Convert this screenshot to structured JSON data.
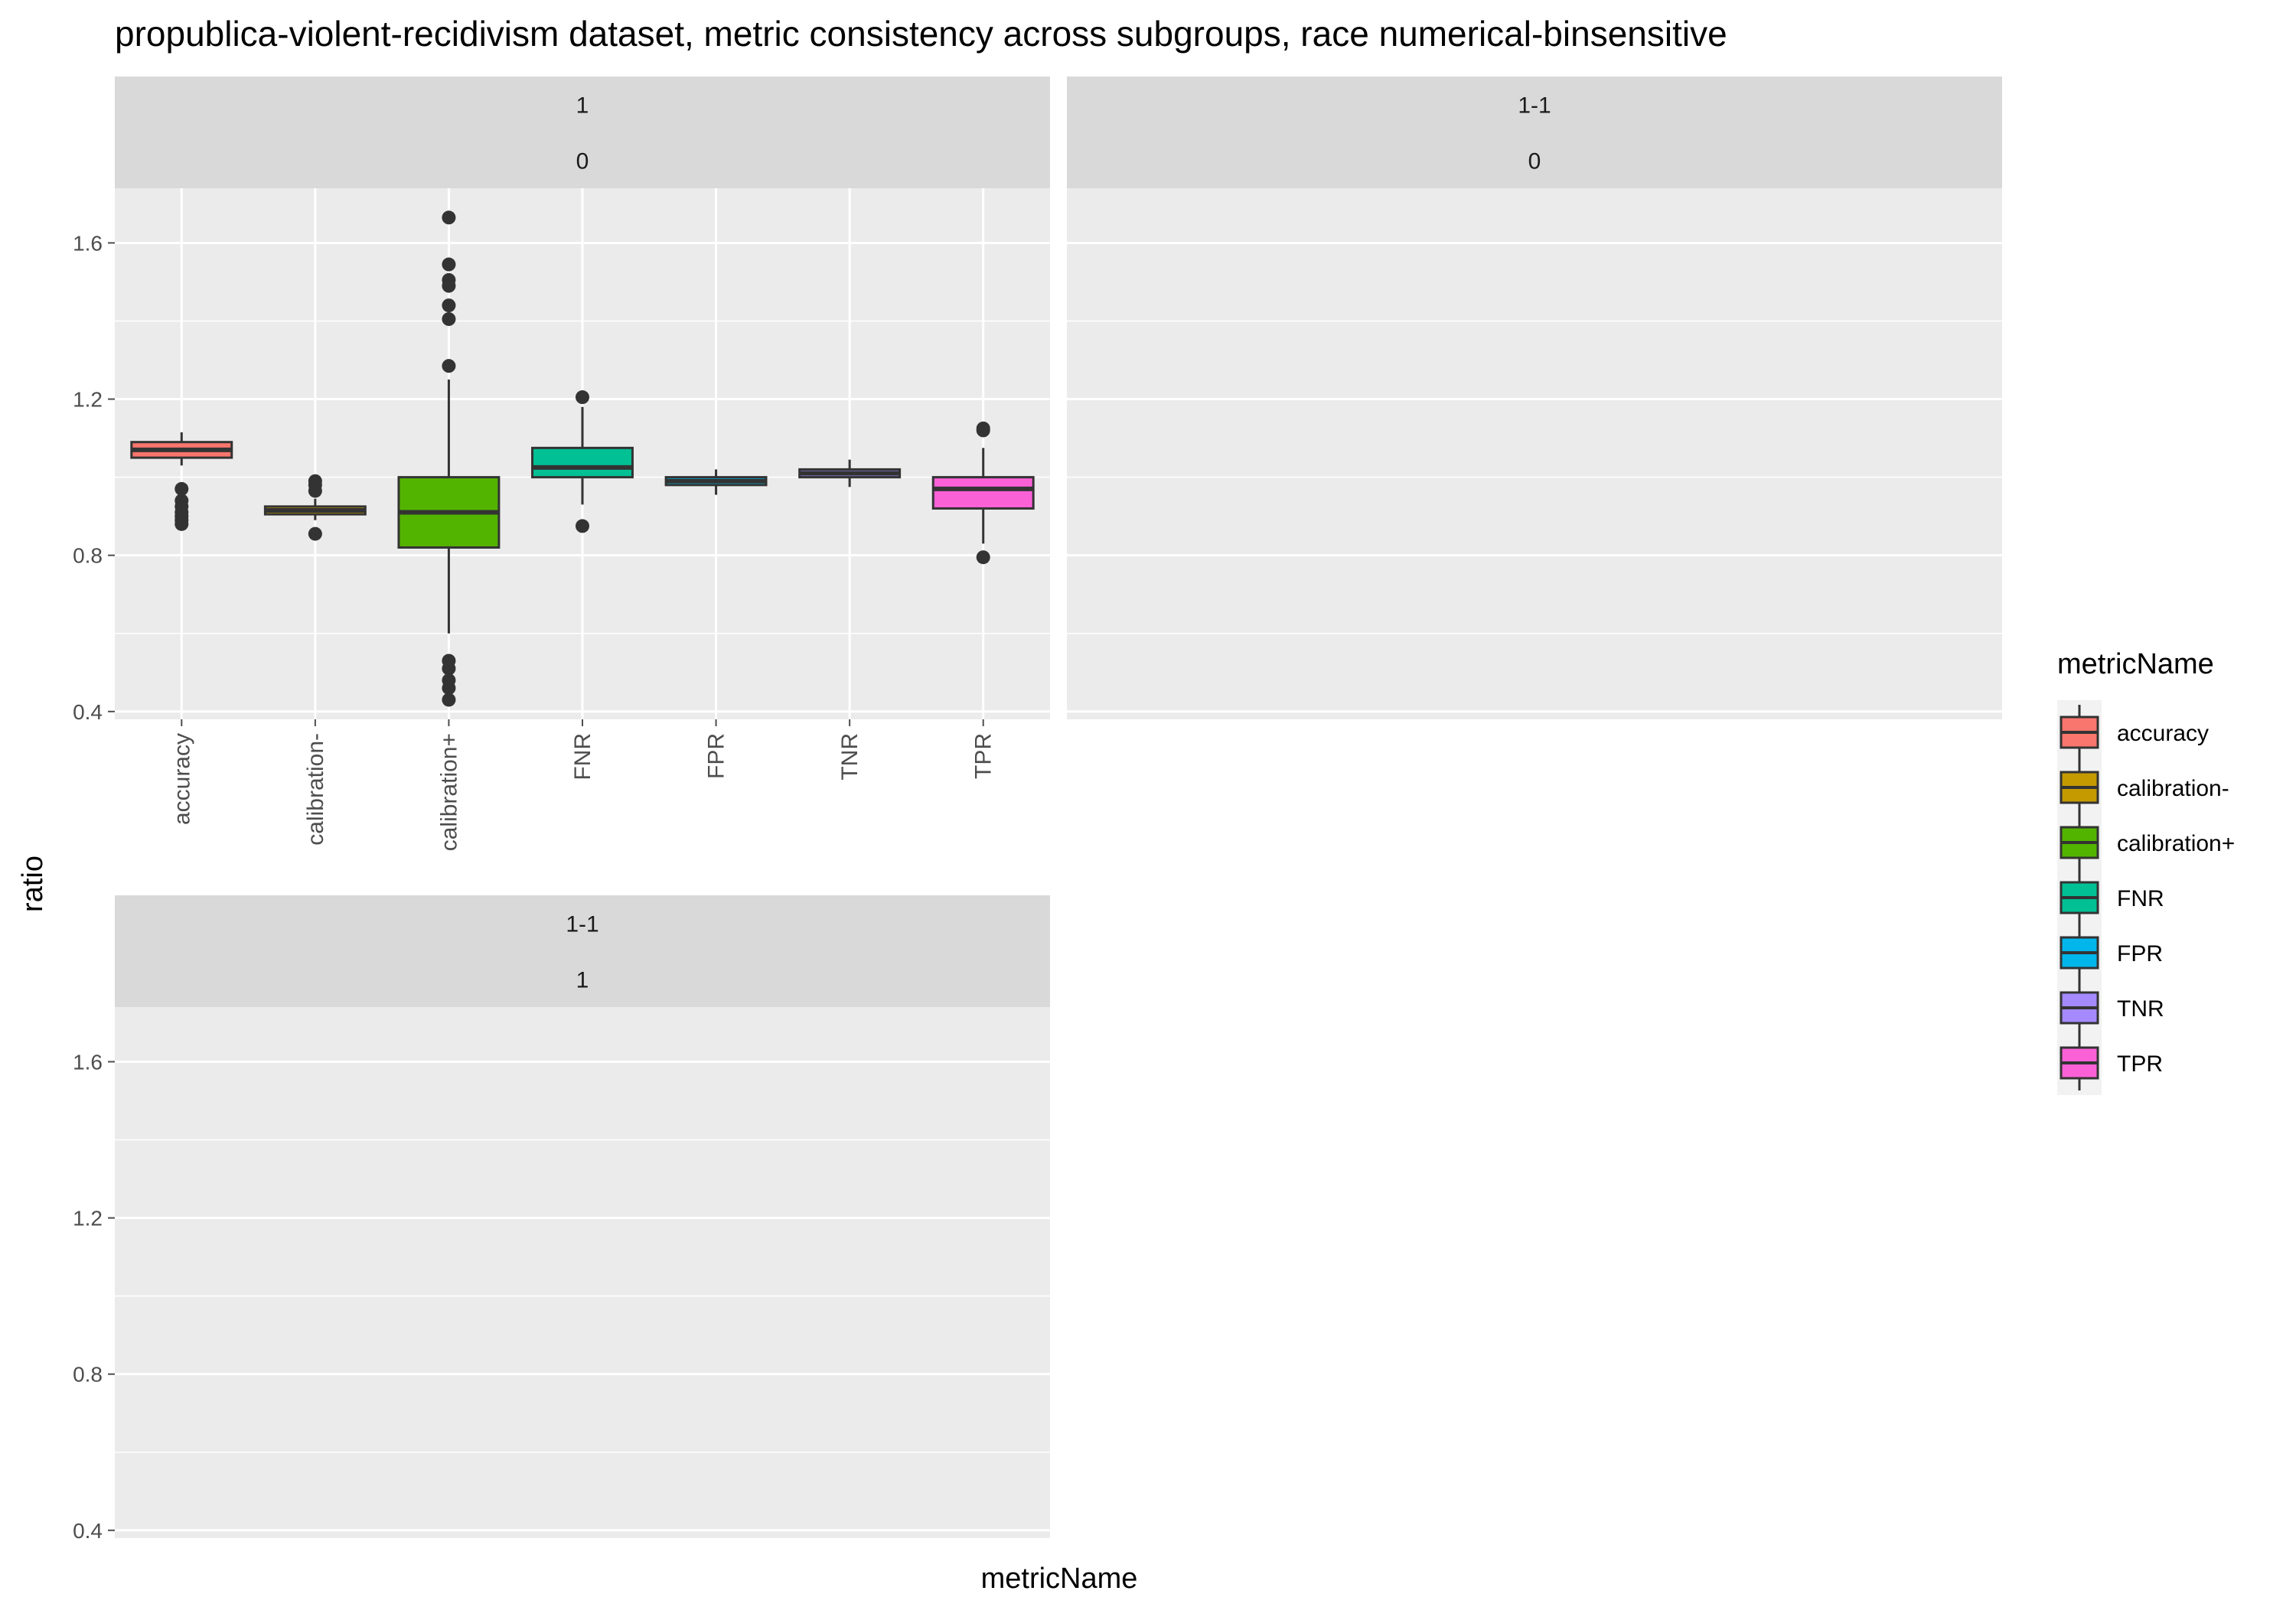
{
  "chart_data": {
    "type": "boxplot",
    "title": "propublica-violent-recidivism dataset, metric consistency across subgroups, race numerical-binsensitive",
    "xlabel": "metricName",
    "ylabel": "ratio",
    "ylim": [
      0.38,
      1.74
    ],
    "y_ticks": [
      0.4,
      0.8,
      1.2,
      1.6
    ],
    "y_tick_labels": [
      "0.4",
      "0.8",
      "1.2",
      "1.6"
    ],
    "y_minor_gridlines": [
      0.6,
      1.0,
      1.4
    ],
    "categories": [
      "accuracy",
      "calibration-",
      "calibration+",
      "FNR",
      "FPR",
      "TNR",
      "TPR"
    ],
    "legend": {
      "title": "metricName",
      "position": "right",
      "entries": [
        {
          "label": "accuracy",
          "color": "#F8766D"
        },
        {
          "label": "calibration-",
          "color": "#C49A00"
        },
        {
          "label": "calibration+",
          "color": "#53B400"
        },
        {
          "label": "FNR",
          "color": "#00C094"
        },
        {
          "label": "FPR",
          "color": "#00B6EB"
        },
        {
          "label": "TNR",
          "color": "#A58AFF"
        },
        {
          "label": "TPR",
          "color": "#FB61D7"
        }
      ]
    },
    "panels": [
      {
        "strip": [
          "1",
          "0"
        ],
        "show_x_axis": true,
        "boxes": [
          {
            "category": "accuracy",
            "color": "#F8766D",
            "whisker_low": 1.03,
            "q1": 1.05,
            "median": 1.07,
            "q3": 1.09,
            "whisker_high": 1.115,
            "outliers": [
              0.97,
              0.94,
              0.925,
              0.91,
              0.9,
              0.89,
              0.88
            ]
          },
          {
            "category": "calibration-",
            "color": "#C49A00",
            "whisker_low": 0.89,
            "q1": 0.905,
            "median": 0.915,
            "q3": 0.925,
            "whisker_high": 0.945,
            "outliers": [
              0.99,
              0.98,
              0.965,
              0.855
            ]
          },
          {
            "category": "calibration+",
            "color": "#53B400",
            "whisker_low": 0.6,
            "q1": 0.82,
            "median": 0.91,
            "q3": 1.0,
            "whisker_high": 1.25,
            "outliers": [
              1.665,
              1.545,
              1.505,
              1.49,
              1.44,
              1.405,
              1.285,
              0.53,
              0.51,
              0.48,
              0.46,
              0.43
            ]
          },
          {
            "category": "FNR",
            "color": "#00C094",
            "whisker_low": 0.93,
            "q1": 1.0,
            "median": 1.025,
            "q3": 1.075,
            "whisker_high": 1.18,
            "outliers": [
              1.205,
              0.875
            ]
          },
          {
            "category": "FPR",
            "color": "#00B6EB",
            "whisker_low": 0.955,
            "q1": 0.98,
            "median": 0.99,
            "q3": 1.0,
            "whisker_high": 1.02,
            "outliers": []
          },
          {
            "category": "TNR",
            "color": "#A58AFF",
            "whisker_low": 0.975,
            "q1": 1.0,
            "median": 1.01,
            "q3": 1.02,
            "whisker_high": 1.045,
            "outliers": []
          },
          {
            "category": "TPR",
            "color": "#FB61D7",
            "whisker_low": 0.83,
            "q1": 0.92,
            "median": 0.97,
            "q3": 1.0,
            "whisker_high": 1.075,
            "outliers": [
              1.125,
              1.12,
              0.795
            ]
          }
        ]
      },
      {
        "strip": [
          "1-1",
          "0"
        ],
        "show_x_axis": false,
        "boxes": []
      },
      {
        "strip": [
          "1-1",
          "1"
        ],
        "show_x_axis": false,
        "boxes": []
      }
    ]
  }
}
